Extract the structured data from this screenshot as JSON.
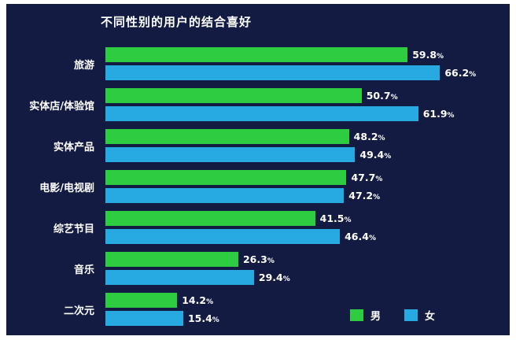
{
  "chart_data": {
    "type": "bar",
    "orientation": "horizontal",
    "title": "不同性别的用户的结合喜好",
    "categories": [
      "旅游",
      "实体店/体验馆",
      "实体产品",
      "电影/电视剧",
      "综艺节目",
      "音乐",
      "二次元"
    ],
    "series": [
      {
        "name": "男",
        "color": "#2ecc40",
        "values": [
          59.8,
          50.7,
          48.2,
          47.7,
          41.5,
          26.3,
          14.2
        ]
      },
      {
        "name": "女",
        "color": "#27a9e1",
        "values": [
          66.2,
          61.9,
          49.4,
          47.2,
          46.4,
          29.4,
          15.4
        ]
      }
    ],
    "value_suffix": "%",
    "xlim": [
      0,
      80
    ],
    "grid": false,
    "legend_position": "bottom-right",
    "colors": {
      "background": "#131b42",
      "text": "#ffffff",
      "male_bar": "#2ecc40",
      "female_bar": "#27a9e1"
    }
  }
}
